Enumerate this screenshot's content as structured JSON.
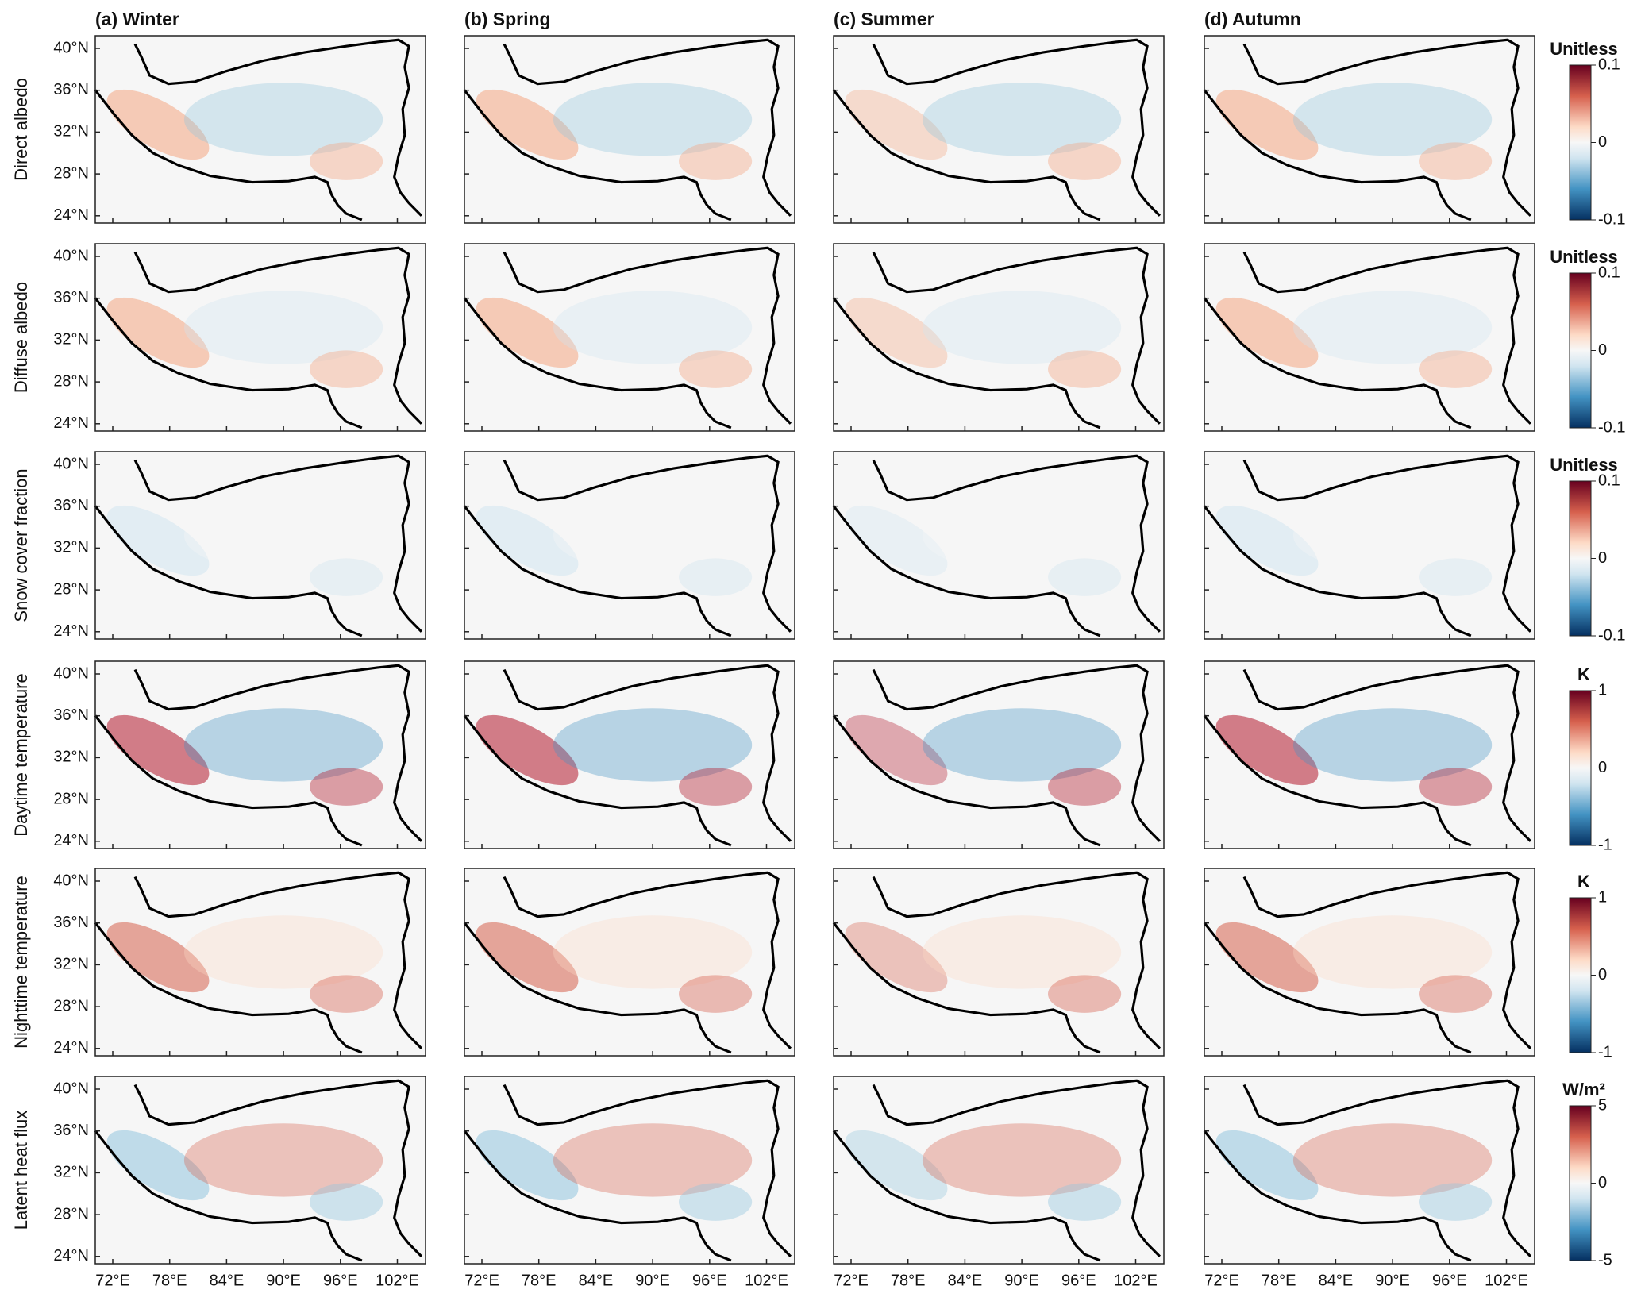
{
  "columns": [
    "(a) Winter",
    "(b) Spring",
    "(c) Summer",
    "(d) Autumn"
  ],
  "rows": [
    {
      "label": "Direct albedo",
      "unit": "Unitless",
      "colorbar_ticks": [
        "0.1",
        "0",
        "-0.1"
      ]
    },
    {
      "label": "Diffuse albedo",
      "unit": "Unitless",
      "colorbar_ticks": [
        "0.1",
        "0",
        "-0.1"
      ]
    },
    {
      "label": "Snow cover fraction",
      "unit": "Unitless",
      "colorbar_ticks": [
        "0.1",
        "0",
        "-0.1"
      ]
    },
    {
      "label": "Daytime temperature",
      "unit": "K",
      "colorbar_ticks": [
        "1",
        "0",
        "-1"
      ]
    },
    {
      "label": "Nighttime temperature",
      "unit": "K",
      "colorbar_ticks": [
        "1",
        "0",
        "-1"
      ]
    },
    {
      "label": "Latent heat flux",
      "unit": "W/m²",
      "colorbar_ticks": [
        "5",
        "0",
        "-5"
      ]
    }
  ],
  "lat_ticks": [
    "40°N",
    "36°N",
    "32°N",
    "28°N",
    "24°N"
  ],
  "lon_ticks": [
    "72°E",
    "78°E",
    "84°E",
    "90°E",
    "96°E",
    "102°E"
  ]
}
